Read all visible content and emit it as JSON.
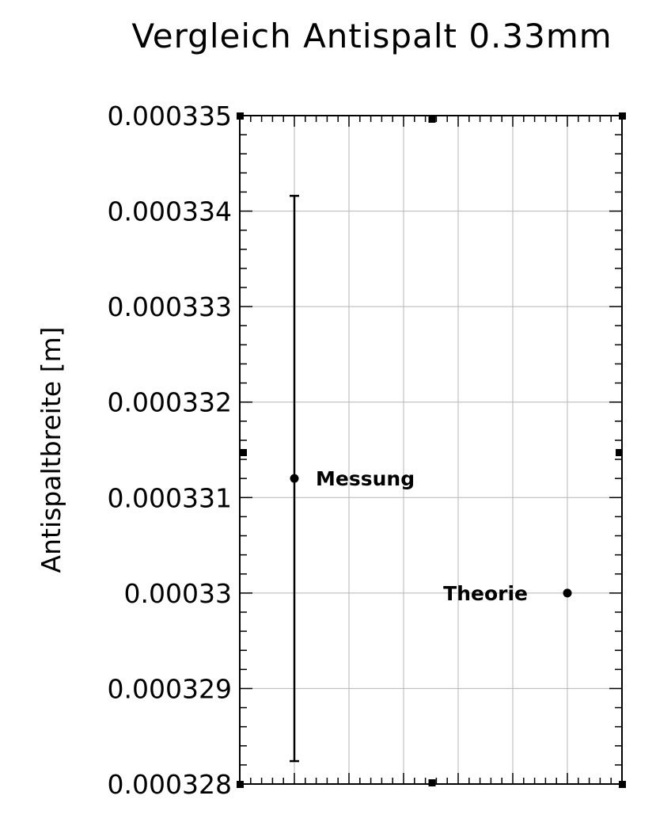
{
  "chart_data": {
    "type": "scatter",
    "title": "Vergleich Antispalt 0.33mm",
    "xlabel": "",
    "ylabel": "Antispaltbreite [m]",
    "xlim": [
      0,
      3.5
    ],
    "ylim": [
      0.000328,
      0.000335
    ],
    "yticks": [
      "0.000328",
      "0.000329",
      "0.00033",
      "0.000331",
      "0.000332",
      "0.000333",
      "0.000334",
      "0.000335"
    ],
    "grid": true,
    "points": [
      {
        "label": "Messung",
        "x": 0.5,
        "y": 0.0003312,
        "yerr": 2.96e-06,
        "label_side": "right"
      },
      {
        "label": "Theorie",
        "x": 3.0,
        "y": 0.00033,
        "yerr": 0,
        "label_side": "left"
      }
    ]
  }
}
